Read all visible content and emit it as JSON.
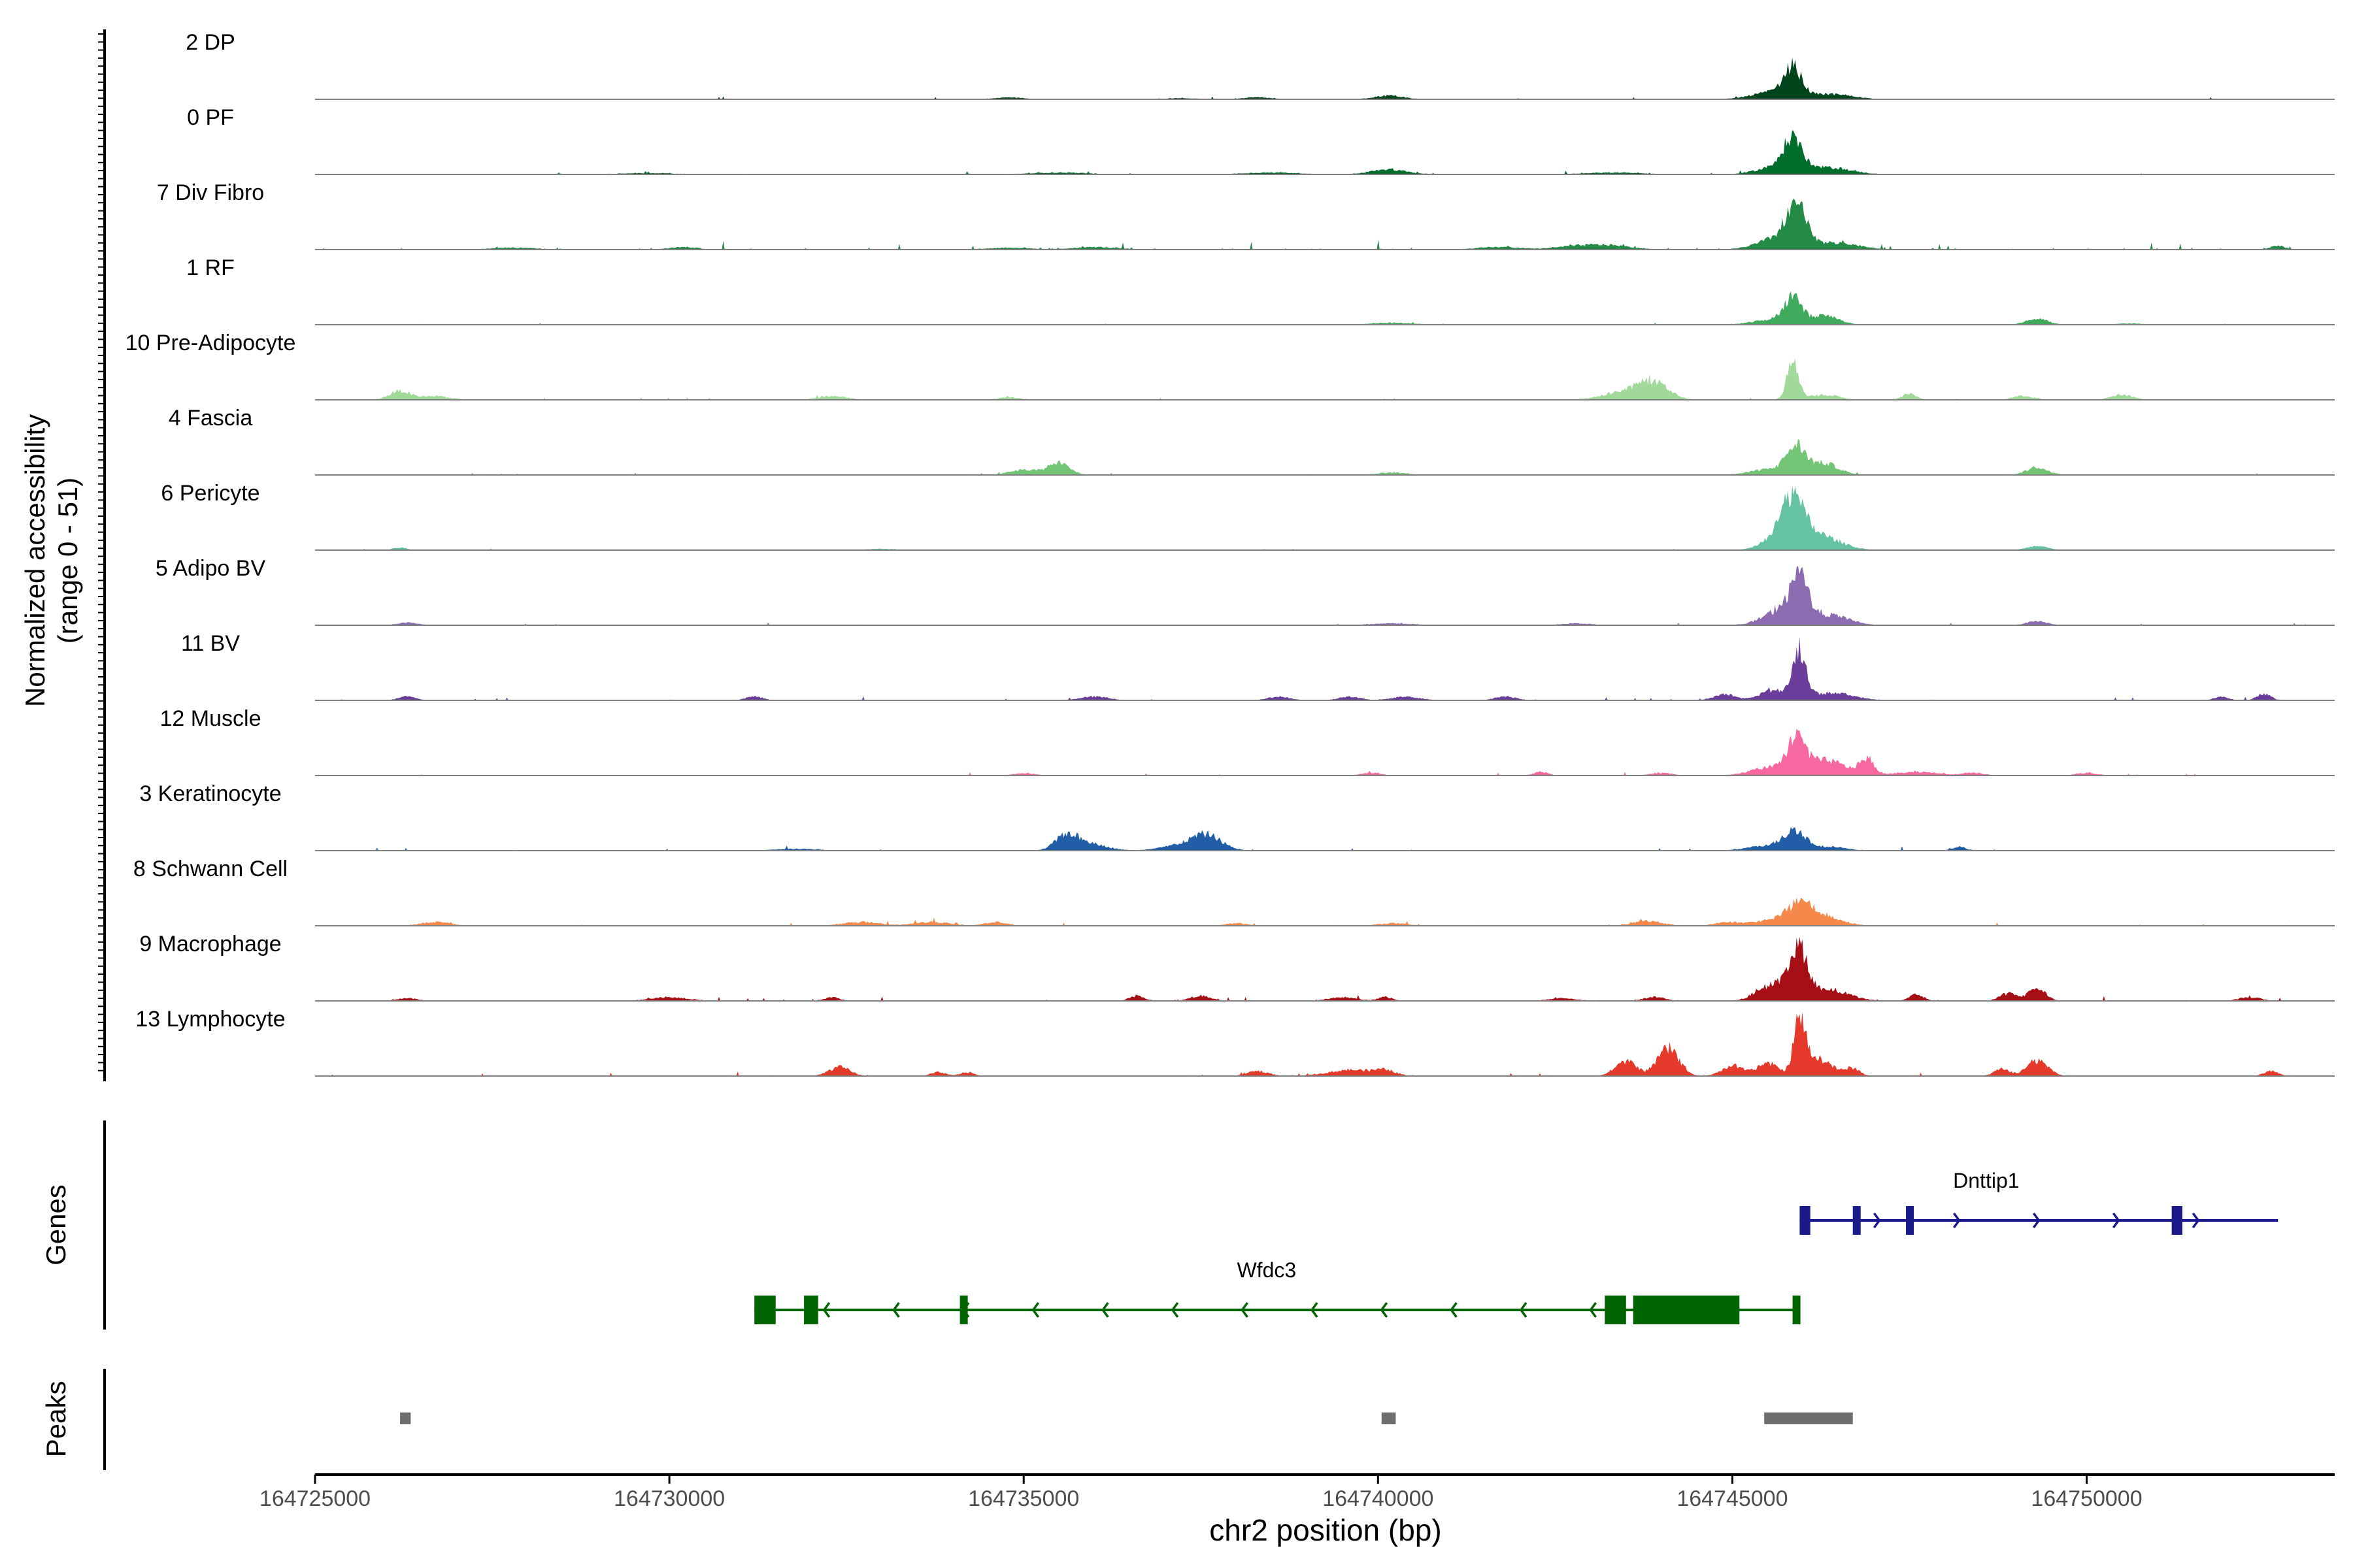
{
  "chart_data": {
    "type": "area",
    "title": "",
    "ylabel_line1": "Normalized accessibility",
    "ylabel_line2": "(range 0 - 51)",
    "xlabel": "chr2 position (bp)",
    "ylim": [
      0,
      51
    ],
    "xlim": [
      164725000,
      164753500
    ],
    "xticks": [
      164725000,
      164730000,
      164735000,
      164740000,
      164745000,
      164750000
    ],
    "xtick_labels": [
      "164725000",
      "164730000",
      "164735000",
      "164740000",
      "164745000",
      "164750000"
    ],
    "tracks": [
      {
        "name": "2 DP",
        "color": "#00441b",
        "scale": 1.0,
        "noise": 0.06,
        "peaks": [
          [
            164745850,
            120,
            22
          ],
          [
            164745600,
            300,
            6
          ],
          [
            164746400,
            300,
            4
          ],
          [
            164740150,
            200,
            3
          ],
          [
            164738300,
            200,
            1.5
          ],
          [
            164734800,
            200,
            1.5
          ],
          [
            164737200,
            200,
            1
          ]
        ]
      },
      {
        "name": "0 PF",
        "color": "#006d2c",
        "scale": 1.0,
        "noise": 0.08,
        "peaks": [
          [
            164745850,
            120,
            24
          ],
          [
            164745700,
            300,
            7
          ],
          [
            164746400,
            300,
            5
          ],
          [
            164740150,
            250,
            4
          ],
          [
            164735500,
            400,
            1.5
          ],
          [
            164738500,
            400,
            1.5
          ],
          [
            164743300,
            400,
            1.5
          ],
          [
            164729700,
            400,
            1
          ]
        ]
      },
      {
        "name": "7 Div Fibro",
        "color": "#238b45",
        "scale": 1.0,
        "noise": 0.22,
        "peaks": [
          [
            164745900,
            130,
            30
          ],
          [
            164745700,
            300,
            10
          ],
          [
            164746500,
            300,
            5
          ],
          [
            164743300,
            300,
            3
          ],
          [
            164741700,
            300,
            2
          ],
          [
            164736000,
            300,
            2
          ],
          [
            164734800,
            300,
            1.5
          ],
          [
            164727800,
            300,
            1.5
          ],
          [
            164730200,
            200,
            2
          ],
          [
            164742800,
            300,
            2.5
          ],
          [
            164752700,
            100,
            3
          ]
        ]
      },
      {
        "name": "1 RF",
        "color": "#41ab5d",
        "scale": 1.0,
        "noise": 0.05,
        "peaks": [
          [
            164745850,
            120,
            20
          ],
          [
            164746300,
            200,
            7
          ],
          [
            164745600,
            300,
            4
          ],
          [
            164749300,
            150,
            5
          ],
          [
            164740200,
            300,
            1.5
          ],
          [
            164750600,
            200,
            1
          ]
        ]
      },
      {
        "name": "10 Pre-Adipocyte",
        "color": "#a1d99b",
        "scale": 1.0,
        "noise": 0.06,
        "peaks": [
          [
            164745850,
            80,
            32
          ],
          [
            164746300,
            200,
            4
          ],
          [
            164743900,
            200,
            13
          ],
          [
            164743500,
            300,
            7
          ],
          [
            164726200,
            150,
            7
          ],
          [
            164726700,
            200,
            3
          ],
          [
            164732300,
            200,
            3
          ],
          [
            164734800,
            150,
            2
          ],
          [
            164747500,
            100,
            5
          ],
          [
            164749100,
            150,
            3
          ],
          [
            164750500,
            150,
            4
          ]
        ]
      },
      {
        "name": "4 Fascia",
        "color": "#74c476",
        "scale": 1.0,
        "noise": 0.06,
        "peaks": [
          [
            164745900,
            130,
            20
          ],
          [
            164746300,
            200,
            9
          ],
          [
            164745600,
            300,
            5
          ],
          [
            164735500,
            150,
            10
          ],
          [
            164735000,
            200,
            4
          ],
          [
            164749300,
            150,
            6
          ],
          [
            164740200,
            200,
            2
          ]
        ]
      },
      {
        "name": "6 Pericyte",
        "color": "#66c2a4",
        "scale": 1.0,
        "noise": 0.04,
        "peaks": [
          [
            164745850,
            160,
            34
          ],
          [
            164746200,
            300,
            12
          ],
          [
            164745600,
            200,
            8
          ],
          [
            164749300,
            150,
            3
          ],
          [
            164733000,
            200,
            1
          ],
          [
            164726200,
            100,
            2
          ]
        ]
      },
      {
        "name": "5 Adipo BV",
        "color": "#8c6bb1",
        "scale": 1.0,
        "noise": 0.06,
        "peaks": [
          [
            164745950,
            120,
            34
          ],
          [
            164745700,
            250,
            12
          ],
          [
            164746400,
            250,
            8
          ],
          [
            164749300,
            150,
            3
          ],
          [
            164726300,
            150,
            2
          ],
          [
            164740200,
            300,
            1.5
          ],
          [
            164742800,
            200,
            1.5
          ]
        ]
      },
      {
        "name": "11 BV",
        "color": "#6a3d9a",
        "scale": 1.0,
        "noise": 0.1,
        "peaks": [
          [
            164745950,
            90,
            38
          ],
          [
            164745600,
            200,
            8
          ],
          [
            164746400,
            300,
            6
          ],
          [
            164744900,
            150,
            5
          ],
          [
            164726300,
            120,
            3
          ],
          [
            164731200,
            120,
            3
          ],
          [
            164736000,
            200,
            3
          ],
          [
            164738600,
            150,
            3
          ],
          [
            164739600,
            150,
            3
          ],
          [
            164740400,
            200,
            3
          ],
          [
            164741800,
            150,
            3
          ],
          [
            164751900,
            100,
            3
          ],
          [
            164752500,
            100,
            5
          ]
        ]
      },
      {
        "name": "12 Muscle",
        "color": "#f768a1",
        "scale": 1.0,
        "noise": 0.08,
        "peaks": [
          [
            164745900,
            120,
            26
          ],
          [
            164746300,
            300,
            12
          ],
          [
            164746900,
            100,
            12
          ],
          [
            164745500,
            250,
            6
          ],
          [
            164747600,
            300,
            3
          ],
          [
            164748400,
            150,
            2
          ],
          [
            164735000,
            150,
            2
          ],
          [
            164739900,
            150,
            2
          ],
          [
            164742300,
            100,
            3
          ],
          [
            164744000,
            150,
            2
          ],
          [
            164750000,
            150,
            2
          ]
        ]
      },
      {
        "name": "3 Keratinocyte",
        "color": "#225ea8",
        "scale": 1.0,
        "noise": 0.1,
        "peaks": [
          [
            164745900,
            140,
            14
          ],
          [
            164745600,
            300,
            5
          ],
          [
            164746400,
            200,
            3
          ],
          [
            164735600,
            150,
            11
          ],
          [
            164735900,
            250,
            6
          ],
          [
            164737600,
            200,
            10
          ],
          [
            164737300,
            300,
            5
          ],
          [
            164748200,
            100,
            3
          ],
          [
            164731800,
            300,
            1.5
          ]
        ]
      },
      {
        "name": "8 Schwann Cell",
        "color": "#f4894b",
        "scale": 1.0,
        "noise": 0.08,
        "peaks": [
          [
            164745950,
            180,
            16
          ],
          [
            164746300,
            250,
            7
          ],
          [
            164745500,
            250,
            4
          ],
          [
            164743800,
            200,
            4
          ],
          [
            164744900,
            150,
            3
          ],
          [
            164726700,
            200,
            3
          ],
          [
            164732700,
            250,
            3
          ],
          [
            164733700,
            250,
            3
          ],
          [
            164734600,
            150,
            3
          ],
          [
            164740200,
            200,
            2
          ],
          [
            164738000,
            150,
            2
          ]
        ]
      },
      {
        "name": "9 Macrophage",
        "color": "#a50f15",
        "scale": 1.0,
        "noise": 0.12,
        "peaks": [
          [
            164745950,
            110,
            34
          ],
          [
            164745700,
            200,
            12
          ],
          [
            164746300,
            300,
            10
          ],
          [
            164745400,
            150,
            6
          ],
          [
            164749300,
            120,
            10
          ],
          [
            164748900,
            120,
            6
          ],
          [
            164736600,
            100,
            4
          ],
          [
            164737500,
            150,
            4
          ],
          [
            164739500,
            200,
            3
          ],
          [
            164740100,
            100,
            3
          ],
          [
            164742600,
            200,
            2
          ],
          [
            164743900,
            150,
            3
          ],
          [
            164726300,
            150,
            2
          ],
          [
            164730000,
            250,
            3
          ],
          [
            164732300,
            100,
            3
          ],
          [
            164747600,
            100,
            5
          ],
          [
            164752300,
            150,
            3
          ]
        ]
      },
      {
        "name": "13 Lymphocyte",
        "color": "#e5392b",
        "scale": 1.0,
        "noise": 0.1,
        "peaks": [
          [
            164745950,
            80,
            42
          ],
          [
            164746200,
            200,
            14
          ],
          [
            164745500,
            150,
            10
          ],
          [
            164744100,
            150,
            22
          ],
          [
            164743500,
            150,
            12
          ],
          [
            164745000,
            150,
            8
          ],
          [
            164749300,
            150,
            12
          ],
          [
            164748800,
            100,
            6
          ],
          [
            164732400,
            150,
            7
          ],
          [
            164733800,
            100,
            3
          ],
          [
            164734200,
            100,
            3
          ],
          [
            164738300,
            150,
            4
          ],
          [
            164739600,
            300,
            5
          ],
          [
            164740100,
            150,
            4
          ],
          [
            164746700,
            100,
            6
          ],
          [
            164752600,
            100,
            4
          ]
        ]
      }
    ],
    "genes": [
      {
        "name": "Dnttip1",
        "strand": "+",
        "color": "#1a1a8a",
        "start": 164745950,
        "end": 164752700,
        "exons": [
          [
            164745950,
            164746100
          ],
          [
            164746700,
            164746750
          ],
          [
            164747450,
            164747550
          ],
          [
            164751200,
            164751350
          ]
        ]
      },
      {
        "name": "Wfdc3",
        "strand": "-",
        "color": "#006400",
        "start": 164731200,
        "end": 164745950,
        "exons": [
          [
            164731200,
            164731500
          ],
          [
            164731900,
            164732100
          ],
          [
            164734100,
            164734200
          ],
          [
            164743200,
            164743500
          ],
          [
            164743600,
            164745100
          ],
          [
            164745850,
            164745950
          ]
        ]
      }
    ],
    "peaks_track": [
      [
        164726200,
        164726350
      ],
      [
        164740050,
        164740250
      ],
      [
        164745450,
        164746700
      ]
    ],
    "panel_labels": {
      "genes": "Genes",
      "peaks": "Peaks"
    }
  }
}
